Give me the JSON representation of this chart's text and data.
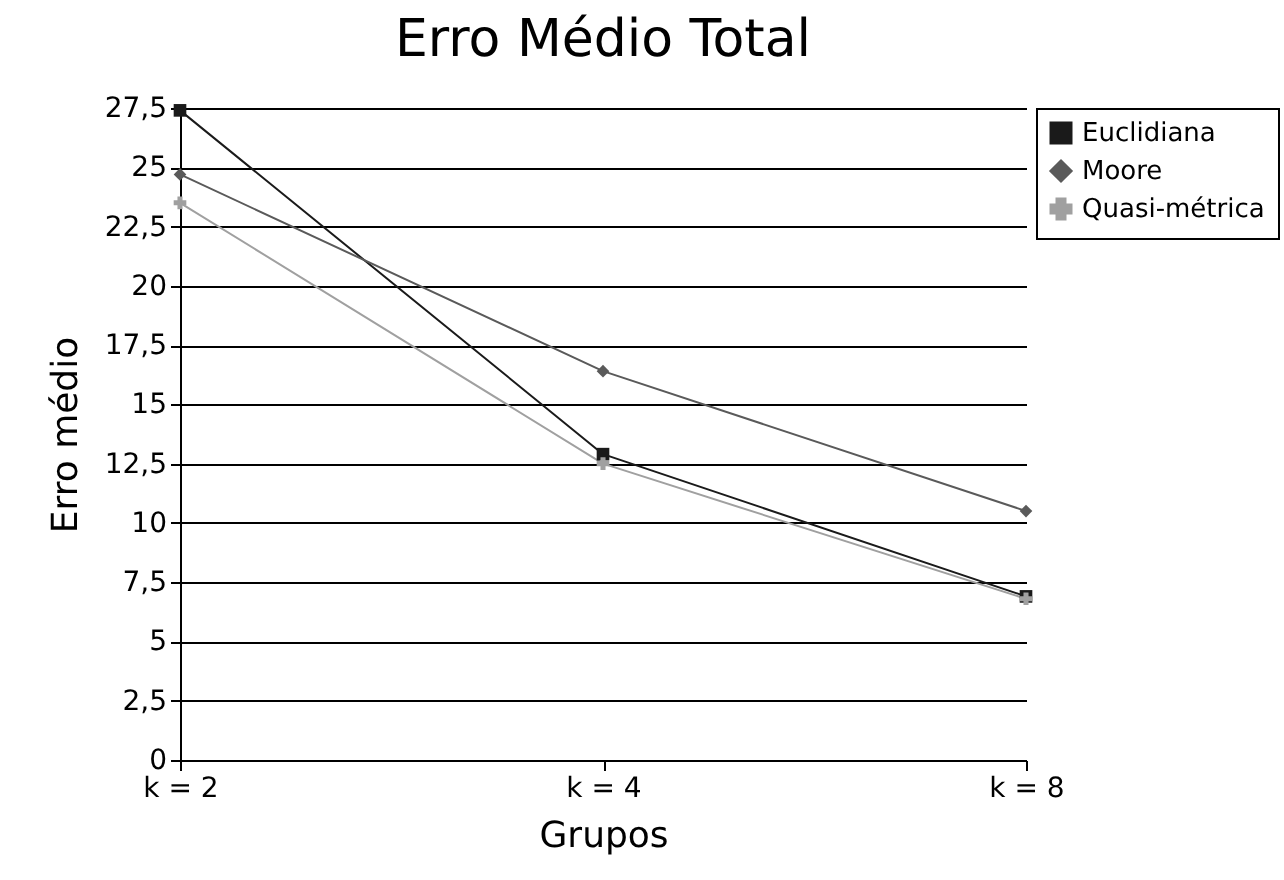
{
  "chart_data": {
    "type": "line",
    "title": "Erro Médio Total",
    "xlabel": "Grupos",
    "ylabel": "Erro médio",
    "categories": [
      "k = 2",
      "k = 4",
      "k = 8"
    ],
    "series": [
      {
        "name": "Euclidiana",
        "color": "#1a1a1a",
        "marker": "square",
        "values": [
          27.4,
          12.9,
          6.9
        ]
      },
      {
        "name": "Moore",
        "color": "#5a5a5a",
        "marker": "diamond",
        "values": [
          24.7,
          16.4,
          10.5
        ]
      },
      {
        "name": "Quasi-métrica",
        "color": "#a0a0a0",
        "marker": "cross",
        "values": [
          23.5,
          12.5,
          6.8
        ]
      }
    ],
    "ylim": [
      0,
      27.5
    ],
    "yticks": [
      0,
      {
        "value": 2.5,
        "label": "2,5"
      },
      5,
      {
        "value": 7.5,
        "label": "7,5"
      },
      10,
      {
        "value": 12.5,
        "label": "12,5"
      },
      15,
      {
        "value": 17.5,
        "label": "17,5"
      },
      20,
      {
        "value": 22.5,
        "label": "22,5"
      },
      25,
      {
        "value": 27.5,
        "label": "27,5"
      }
    ],
    "grid": "y",
    "legend": "right"
  }
}
